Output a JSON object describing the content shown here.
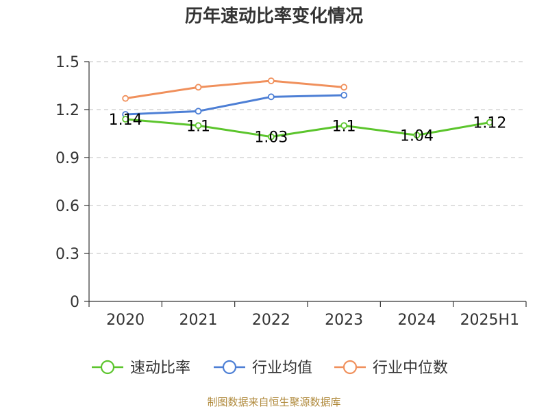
{
  "chart_data": {
    "type": "line",
    "title": "历年速动比率变化情况",
    "categories": [
      "2020",
      "2021",
      "2022",
      "2023",
      "2024",
      "2025H1"
    ],
    "ylim": [
      0,
      1.5
    ],
    "yticks": [
      "0",
      "0.3",
      "0.6",
      "0.9",
      "1.2",
      "1.5"
    ],
    "grid": true,
    "legend_position": "bottom",
    "series": [
      {
        "name": "速动比率",
        "color": "#5cc52d",
        "values": [
          1.14,
          1.1,
          1.03,
          1.1,
          1.04,
          1.12
        ],
        "labels": [
          "1.14",
          "1.1",
          "1.03",
          "1.1",
          "1.04",
          "1.12"
        ]
      },
      {
        "name": "行业均值",
        "color": "#4d7fd5",
        "values": [
          1.17,
          1.19,
          1.28,
          1.29,
          null,
          null
        ]
      },
      {
        "name": "行业中位数",
        "color": "#f0905c",
        "values": [
          1.27,
          1.34,
          1.38,
          1.34,
          null,
          null
        ]
      }
    ],
    "source": "制图数据来自恒生聚源数据库"
  }
}
